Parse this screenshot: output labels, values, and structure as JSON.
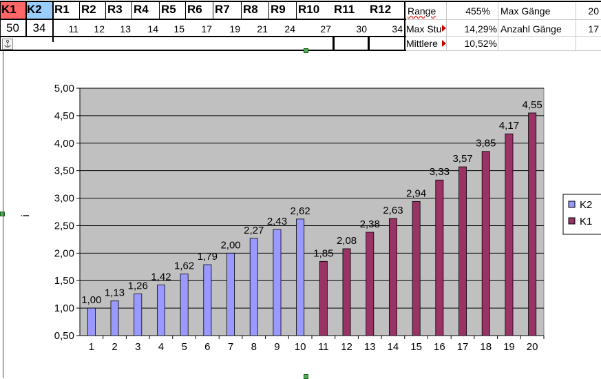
{
  "table": {
    "row1": [
      "K1",
      "K2",
      "R1",
      "R2",
      "R3",
      "R4",
      "R5",
      "R6",
      "R7",
      "R8",
      "R9",
      "R10",
      "R11",
      "R12"
    ],
    "row2": [
      "50",
      "34",
      "11",
      "12",
      "13",
      "14",
      "15",
      "17",
      "19",
      "21",
      "24",
      "27",
      "30",
      "34"
    ]
  },
  "stats": {
    "range_label": "Range",
    "range_value": "455%",
    "max_gaenge_label": "Max Gänge",
    "max_gaenge_value": "20",
    "max_stu_label": "Max Stu",
    "max_stu_value": "14,29%",
    "anzahl_label": "Anzahl Gänge",
    "anzahl_value": "17",
    "mittlere_label": "Mittlere",
    "mittlere_value": "10,52%"
  },
  "colors": {
    "k1_header": "#ff6666",
    "k2_header": "#99ccff",
    "plot_bg": "#c0c0c0",
    "k2_bar": "#9999ff",
    "k1_bar": "#993366"
  },
  "chart_data": {
    "type": "bar",
    "categories": [
      "1",
      "2",
      "3",
      "4",
      "5",
      "6",
      "7",
      "8",
      "9",
      "10",
      "11",
      "12",
      "13",
      "14",
      "15",
      "16",
      "17",
      "18",
      "19",
      "20"
    ],
    "series": [
      {
        "name": "K2",
        "values": [
          1.0,
          1.13,
          1.26,
          1.42,
          1.62,
          1.79,
          2.0,
          2.27,
          2.43,
          2.62,
          null,
          null,
          null,
          null,
          null,
          null,
          null,
          null,
          null,
          null
        ]
      },
      {
        "name": "K1",
        "values": [
          null,
          null,
          null,
          null,
          null,
          null,
          null,
          null,
          null,
          null,
          1.85,
          2.08,
          2.38,
          2.63,
          2.94,
          3.33,
          3.57,
          3.85,
          4.17,
          4.55
        ]
      }
    ],
    "labels": [
      "1,00",
      "1,13",
      "1,26",
      "1,42",
      "1,62",
      "1,79",
      "2,00",
      "2,27",
      "2,43",
      "2,62",
      "1,85",
      "2,08",
      "2,38",
      "2,63",
      "2,94",
      "3,33",
      "3,57",
      "3,85",
      "4,17",
      "4,55"
    ],
    "yticks": [
      "0,50",
      "1,00",
      "1,50",
      "2,00",
      "2,50",
      "3,00",
      "3,50",
      "4,00",
      "4,50",
      "5,00"
    ],
    "ylabel": "i",
    "xlabel": "",
    "ylim": [
      0.5,
      5.0
    ],
    "grid": true,
    "legend": "right"
  }
}
